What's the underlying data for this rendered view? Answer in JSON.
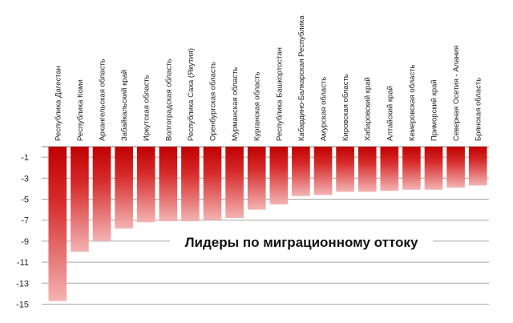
{
  "chart_data": {
    "type": "bar",
    "title": "Лидеры по миграционному оттоку",
    "xlabel": "",
    "ylabel": "",
    "ylim": [
      -15,
      0
    ],
    "yticks": [
      -1,
      -3,
      -5,
      -7,
      -9,
      -11,
      -13,
      -15
    ],
    "grid": true,
    "categories": [
      "Республика Дагестан",
      "Республика Коми",
      "Архангельская  область",
      "Забайкальский  край",
      "Иркутская область",
      "Волгоградская  область",
      "Республика Саха (Якутия)",
      "Оренбургская  область",
      "Мурманская  область",
      "Курганская область",
      "Республика Башкортостан",
      "Кабардино-Балкарская  Республика",
      "Амурская  область",
      "Кировская  область",
      "Хабаровский  край",
      "Алтайский  край",
      "Кемеровская  область",
      "Приморский  край",
      "Северная Осетия - Алания",
      "Брянская область"
    ],
    "values": [
      -14.7,
      -10.0,
      -9.0,
      -7.8,
      -7.2,
      -7.1,
      -7.1,
      -7.0,
      -6.8,
      -6.0,
      -5.5,
      -4.7,
      -4.6,
      -4.3,
      -4.3,
      -4.2,
      -4.1,
      -4.1,
      -3.9,
      -3.7
    ],
    "colors": {
      "bar_top": "#c00000",
      "bar_bottom": "#f4b3b3",
      "grid": "#a6a6a6",
      "axis": "#7f7f7f"
    }
  }
}
